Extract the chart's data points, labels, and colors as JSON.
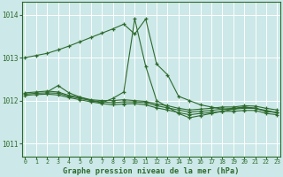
{
  "title": "Graphe pression niveau de la mer (hPa)",
  "bg_color": "#cce8e8",
  "grid_color": "#ffffff",
  "line_color": "#2d6a2d",
  "ylim": [
    1010.7,
    1014.3
  ],
  "yticks": [
    1011,
    1012,
    1013,
    1014
  ],
  "xlim": [
    -0.3,
    23.3
  ],
  "xticks": [
    0,
    1,
    2,
    3,
    4,
    5,
    6,
    7,
    8,
    9,
    10,
    11,
    12,
    13,
    14,
    15,
    16,
    17,
    18,
    19,
    20,
    21,
    22,
    23
  ],
  "series": [
    {
      "x": [
        0,
        1,
        2,
        3,
        4,
        5,
        6,
        7,
        8,
        9,
        10,
        11,
        12,
        13,
        14,
        15,
        16,
        17,
        18,
        19,
        20,
        21,
        22,
        23
      ],
      "y": [
        1013.0,
        1013.05,
        1013.1,
        1013.18,
        1013.27,
        1013.37,
        1013.47,
        1013.57,
        1013.67,
        1013.78,
        1013.55,
        1013.9,
        1012.85,
        1012.6,
        1012.1,
        1012.0,
        1011.9,
        1011.85,
        1011.8,
        1011.82,
        1011.85,
        1011.82,
        1011.75,
        1011.72
      ]
    },
    {
      "x": [
        2,
        3,
        4,
        5,
        6,
        7,
        8,
        9,
        10,
        11,
        12,
        13,
        14,
        15,
        16,
        17,
        18,
        19,
        20,
        21,
        22,
        23
      ],
      "y": [
        1012.2,
        1012.35,
        1012.18,
        1012.08,
        1012.0,
        1011.95,
        1012.05,
        1012.2,
        1013.9,
        1012.8,
        1012.0,
        1011.85,
        1011.7,
        1011.6,
        1011.65,
        1011.7,
        1011.75,
        1011.8,
        1011.85,
        1011.82,
        1011.75,
        1011.72
      ]
    },
    {
      "x": [
        0,
        1,
        2,
        3,
        4,
        5,
        6,
        7,
        8,
        9,
        10,
        11,
        12,
        13,
        14,
        15,
        16,
        17,
        18,
        19,
        20,
        21,
        22,
        23
      ],
      "y": [
        1012.18,
        1012.2,
        1012.22,
        1012.2,
        1012.12,
        1012.08,
        1012.02,
        1012.0,
        1012.0,
        1012.02,
        1012.0,
        1011.98,
        1011.92,
        1011.88,
        1011.82,
        1011.78,
        1011.8,
        1011.82,
        1011.85,
        1011.85,
        1011.88,
        1011.87,
        1011.82,
        1011.78
      ]
    },
    {
      "x": [
        0,
        1,
        2,
        3,
        4,
        5,
        6,
        7,
        8,
        9,
        10,
        11,
        12,
        13,
        14,
        15,
        16,
        17,
        18,
        19,
        20,
        21,
        22,
        23
      ],
      "y": [
        1012.15,
        1012.17,
        1012.18,
        1012.17,
        1012.1,
        1012.05,
        1012.0,
        1011.97,
        1011.95,
        1011.97,
        1011.97,
        1011.95,
        1011.88,
        1011.83,
        1011.78,
        1011.73,
        1011.75,
        1011.77,
        1011.8,
        1011.8,
        1011.82,
        1011.82,
        1011.77,
        1011.72
      ]
    },
    {
      "x": [
        0,
        1,
        2,
        3,
        4,
        5,
        6,
        7,
        8,
        9,
        10,
        11,
        12,
        13,
        14,
        15,
        16,
        17,
        18,
        19,
        20,
        21,
        22,
        23
      ],
      "y": [
        1012.12,
        1012.14,
        1012.15,
        1012.13,
        1012.07,
        1012.02,
        1011.97,
        1011.93,
        1011.9,
        1011.92,
        1011.93,
        1011.9,
        1011.83,
        1011.78,
        1011.72,
        1011.67,
        1011.7,
        1011.72,
        1011.75,
        1011.75,
        1011.77,
        1011.77,
        1011.7,
        1011.67
      ]
    }
  ]
}
